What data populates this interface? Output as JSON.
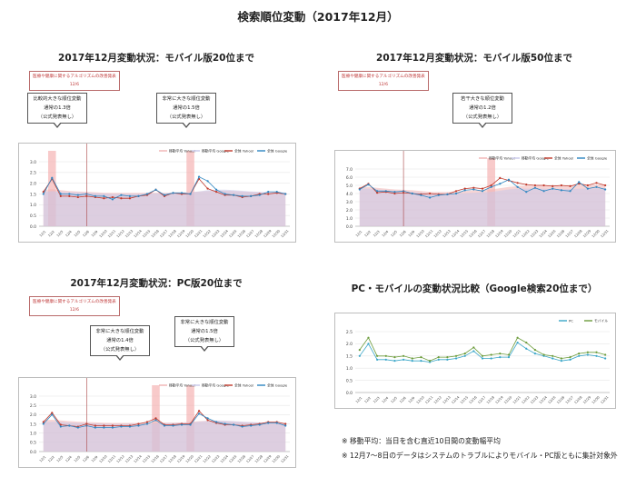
{
  "page_title": "検索順位変動（2017年12月）",
  "footnotes": [
    "※ 移動平均：当日を含む直近10日間の変動幅平均",
    "※ 12月7～8日のデータはシステムのトラブルによりモバイル・PC版ともに集計対象外"
  ],
  "colors": {
    "red": "#c0392b",
    "blue": "#2e86c1",
    "ma_red": "#f1b3b3",
    "ma_blue": "#c8c8ea",
    "green": "#6b9b3a",
    "teal": "#3aa6c8",
    "highlight": "#f4a6a6"
  },
  "chart_data": [
    {
      "id": "mobile20",
      "type": "line",
      "title": "2017年12月変動状況：モバイル版20位まで",
      "legend": [
        "移動平均 Yahoo!",
        "移動平均 Google",
        "全体 Yahoo!",
        "全体 Google"
      ],
      "legend_placement": "top-right",
      "y_ticks": [
        "3.0",
        "2.5",
        "2.0",
        "1.5",
        "1.0",
        "0.5",
        "0.0"
      ],
      "ylim": [
        0,
        3
      ],
      "x": [
        "12/1",
        "12/2",
        "12/3",
        "12/4",
        "12/5",
        "12/6",
        "12/9",
        "12/10",
        "12/11",
        "12/12",
        "12/13",
        "12/14",
        "12/15",
        "12/16",
        "12/17",
        "12/18",
        "12/19",
        "12/20",
        "12/21",
        "12/22",
        "12/23",
        "12/24",
        "12/25",
        "12/26",
        "12/27",
        "12/28",
        "12/29",
        "12/30",
        "12/31"
      ],
      "series": [
        {
          "values": [
            1.6,
            2.2,
            1.4,
            1.4,
            1.35,
            1.4,
            1.35,
            1.3,
            1.35,
            1.3,
            1.3,
            1.4,
            1.45,
            1.7,
            1.4,
            1.55,
            1.5,
            1.5,
            2.2,
            1.75,
            1.6,
            1.45,
            1.45,
            1.35,
            1.4,
            1.5,
            1.5,
            1.55,
            1.5
          ]
        },
        {
          "values": [
            1.5,
            2.25,
            1.5,
            1.5,
            1.45,
            1.5,
            1.4,
            1.4,
            1.25,
            1.45,
            1.4,
            1.4,
            1.5,
            1.7,
            1.45,
            1.55,
            1.55,
            1.5,
            2.3,
            2.1,
            1.7,
            1.5,
            1.45,
            1.4,
            1.4,
            1.45,
            1.6,
            1.6,
            1.5
          ]
        },
        {
          "values": [
            1.7,
            1.72,
            1.68,
            1.64,
            1.62,
            1.6,
            1.58,
            1.56,
            1.55,
            1.55,
            1.55,
            1.55,
            1.56,
            1.56,
            1.56,
            1.56,
            1.57,
            1.58,
            1.62,
            1.64,
            1.65,
            1.65,
            1.64,
            1.62,
            1.6,
            1.58,
            1.57,
            1.56,
            1.56
          ]
        },
        {
          "values": [
            1.6,
            1.63,
            1.6,
            1.58,
            1.57,
            1.55,
            1.54,
            1.52,
            1.5,
            1.5,
            1.5,
            1.5,
            1.52,
            1.53,
            1.53,
            1.54,
            1.55,
            1.57,
            1.62,
            1.68,
            1.7,
            1.7,
            1.68,
            1.65,
            1.62,
            1.6,
            1.58,
            1.58,
            1.57
          ]
        }
      ],
      "highlight_x": [
        "12/2",
        "12/20"
      ],
      "event_x": "12/6",
      "topic_note": [
        "医療や健康に関するアルゴリズムの改善発表",
        "12/6"
      ],
      "callouts": [
        {
          "lines": [
            "比較的大きな順位変動",
            "通常の1.3倍",
            "（公式発表無し）"
          ],
          "x": "12/2"
        },
        {
          "lines": [
            "非常に大きな順位変動",
            "通常の1.5倍",
            "（公式発表無し）"
          ],
          "x": "12/20"
        }
      ]
    },
    {
      "id": "mobile50",
      "type": "line",
      "title": "2017年12月変動状況：モバイル版50位まで",
      "legend": [
        "移動平均 Yahoo!",
        "移動平均 Google",
        "全体 Yahoo!",
        "全体 Google"
      ],
      "legend_placement": "top-right",
      "y_ticks": [
        "7.0",
        "6.0",
        "5.0",
        "4.0",
        "3.0",
        "2.0",
        "1.0",
        "0.0"
      ],
      "ylim": [
        0,
        7
      ],
      "x": [
        "12/1",
        "12/2",
        "12/3",
        "12/4",
        "12/5",
        "12/6",
        "12/9",
        "12/10",
        "12/11",
        "12/12",
        "12/13",
        "12/14",
        "12/15",
        "12/16",
        "12/17",
        "12/18",
        "12/19",
        "12/20",
        "12/21",
        "12/22",
        "12/23",
        "12/24",
        "12/25",
        "12/26",
        "12/27",
        "12/28",
        "12/29",
        "12/30",
        "12/31"
      ],
      "series": [
        {
          "values": [
            4.6,
            5.2,
            4.1,
            4.2,
            4.0,
            4.1,
            4.0,
            3.9,
            4.0,
            3.9,
            3.9,
            4.3,
            4.6,
            4.7,
            4.6,
            5.0,
            5.9,
            5.6,
            5.3,
            5.1,
            5.0,
            5.0,
            4.9,
            5.0,
            4.9,
            5.2,
            5.0,
            5.3,
            5.0
          ]
        },
        {
          "values": [
            4.5,
            5.1,
            4.3,
            4.3,
            4.2,
            4.3,
            4.0,
            3.8,
            3.5,
            3.8,
            3.9,
            4.0,
            4.4,
            4.5,
            4.3,
            4.8,
            5.2,
            5.7,
            4.8,
            4.2,
            4.7,
            4.3,
            4.6,
            4.4,
            4.3,
            5.4,
            4.6,
            4.8,
            4.5
          ]
        },
        {
          "values": [
            4.8,
            4.8,
            4.7,
            4.6,
            4.5,
            4.45,
            4.4,
            4.3,
            4.2,
            4.2,
            4.2,
            4.25,
            4.3,
            4.4,
            4.45,
            4.5,
            4.65,
            4.8,
            4.9,
            4.95,
            5.0,
            5.0,
            5.0,
            5.0,
            5.0,
            5.05,
            5.05,
            5.1,
            5.1
          ]
        },
        {
          "values": [
            4.6,
            4.6,
            4.5,
            4.4,
            4.3,
            4.25,
            4.2,
            4.1,
            4.0,
            4.0,
            3.95,
            4.0,
            4.05,
            4.1,
            4.15,
            4.2,
            4.35,
            4.5,
            4.6,
            4.6,
            4.6,
            4.6,
            4.55,
            4.55,
            4.55,
            4.6,
            4.6,
            4.65,
            4.65
          ]
        }
      ],
      "highlight_x": [
        "12/18"
      ],
      "event_x": "12/6",
      "topic_note": [
        "医療や健康に関するアルゴリズムの改善発表",
        "12/6"
      ],
      "callouts": [
        {
          "lines": [
            "若干大きな順位変動",
            "通常の1.2倍",
            "（公式発表無し）"
          ],
          "x": "12/18"
        }
      ]
    },
    {
      "id": "pc20",
      "type": "line",
      "title": "2017年12月変動状況：PC版20位まで",
      "legend": [
        "移動平均 Yahoo!",
        "移動平均 Google",
        "全体 Yahoo!",
        "全体 Google"
      ],
      "legend_placement": "top-right",
      "y_ticks": [
        "3.0",
        "2.5",
        "2.0",
        "1.5",
        "1.0",
        "0.5",
        "0.0"
      ],
      "ylim": [
        0,
        3
      ],
      "x": [
        "12/1",
        "12/2",
        "12/3",
        "12/4",
        "12/5",
        "12/6",
        "12/9",
        "12/10",
        "12/11",
        "12/12",
        "12/13",
        "12/14",
        "12/15",
        "12/16",
        "12/17",
        "12/18",
        "12/19",
        "12/20",
        "12/21",
        "12/22",
        "12/23",
        "12/24",
        "12/25",
        "12/26",
        "12/27",
        "12/28",
        "12/29",
        "12/30",
        "12/31"
      ],
      "series": [
        {
          "values": [
            1.6,
            2.1,
            1.45,
            1.4,
            1.35,
            1.5,
            1.4,
            1.4,
            1.4,
            1.4,
            1.4,
            1.5,
            1.6,
            1.8,
            1.45,
            1.45,
            1.5,
            1.5,
            2.2,
            1.7,
            1.55,
            1.45,
            1.45,
            1.4,
            1.45,
            1.5,
            1.6,
            1.6,
            1.5
          ]
        },
        {
          "values": [
            1.5,
            2.0,
            1.35,
            1.4,
            1.3,
            1.4,
            1.3,
            1.3,
            1.3,
            1.35,
            1.35,
            1.4,
            1.5,
            1.7,
            1.4,
            1.4,
            1.45,
            1.45,
            2.05,
            1.8,
            1.6,
            1.5,
            1.45,
            1.35,
            1.4,
            1.45,
            1.55,
            1.55,
            1.4
          ]
        },
        {
          "values": [
            1.7,
            1.72,
            1.68,
            1.65,
            1.62,
            1.6,
            1.58,
            1.56,
            1.55,
            1.55,
            1.55,
            1.55,
            1.56,
            1.57,
            1.57,
            1.57,
            1.58,
            1.6,
            1.65,
            1.66,
            1.66,
            1.65,
            1.63,
            1.6,
            1.58,
            1.57,
            1.56,
            1.56,
            1.55
          ]
        },
        {
          "values": [
            1.6,
            1.62,
            1.6,
            1.57,
            1.55,
            1.53,
            1.52,
            1.5,
            1.49,
            1.49,
            1.5,
            1.5,
            1.52,
            1.53,
            1.53,
            1.54,
            1.55,
            1.57,
            1.62,
            1.66,
            1.68,
            1.67,
            1.65,
            1.62,
            1.6,
            1.58,
            1.57,
            1.56,
            1.55
          ]
        }
      ],
      "highlight_x": [
        "12/16",
        "12/20"
      ],
      "event_x": "12/6",
      "topic_note": [
        "医療や健康に関するアルゴリズムの改善発表",
        "12/6"
      ],
      "callouts": [
        {
          "lines": [
            "非常に大きな順位変動",
            "通常の1.4倍",
            "（公式発表無し）"
          ],
          "x": "12/16"
        },
        {
          "lines": [
            "非常に大きな順位変動",
            "通常の1.5倍",
            "（公式発表無し）"
          ],
          "x": "12/20"
        }
      ]
    },
    {
      "id": "compare",
      "type": "line",
      "title": "PC・モバイルの変動状況比較（Google検索20位まで）",
      "legend": [
        "PC",
        "モバイル"
      ],
      "legend_placement": "top-right",
      "y_ticks": [
        "2.5",
        "2.0",
        "1.5",
        "1.0",
        "0.5",
        "0.0"
      ],
      "ylim": [
        0,
        2.5
      ],
      "x": [
        "12/1",
        "12/2",
        "12/3",
        "12/4",
        "12/5",
        "12/6",
        "12/9",
        "12/10",
        "12/11",
        "12/12",
        "12/13",
        "12/14",
        "12/15",
        "12/16",
        "12/17",
        "12/18",
        "12/19",
        "12/20",
        "12/21",
        "12/22",
        "12/23",
        "12/24",
        "12/25",
        "12/26",
        "12/27",
        "12/28",
        "12/29",
        "12/30",
        "12/31"
      ],
      "series": [
        {
          "values": [
            1.5,
            2.0,
            1.35,
            1.35,
            1.3,
            1.35,
            1.3,
            1.3,
            1.25,
            1.35,
            1.35,
            1.4,
            1.5,
            1.7,
            1.4,
            1.4,
            1.45,
            1.45,
            2.05,
            1.8,
            1.6,
            1.5,
            1.4,
            1.3,
            1.35,
            1.5,
            1.55,
            1.5,
            1.4
          ]
        },
        {
          "values": [
            1.75,
            2.25,
            1.5,
            1.5,
            1.45,
            1.5,
            1.4,
            1.45,
            1.3,
            1.45,
            1.45,
            1.5,
            1.6,
            1.85,
            1.5,
            1.55,
            1.6,
            1.55,
            2.25,
            2.05,
            1.75,
            1.55,
            1.5,
            1.4,
            1.45,
            1.6,
            1.65,
            1.65,
            1.55
          ]
        }
      ]
    }
  ]
}
